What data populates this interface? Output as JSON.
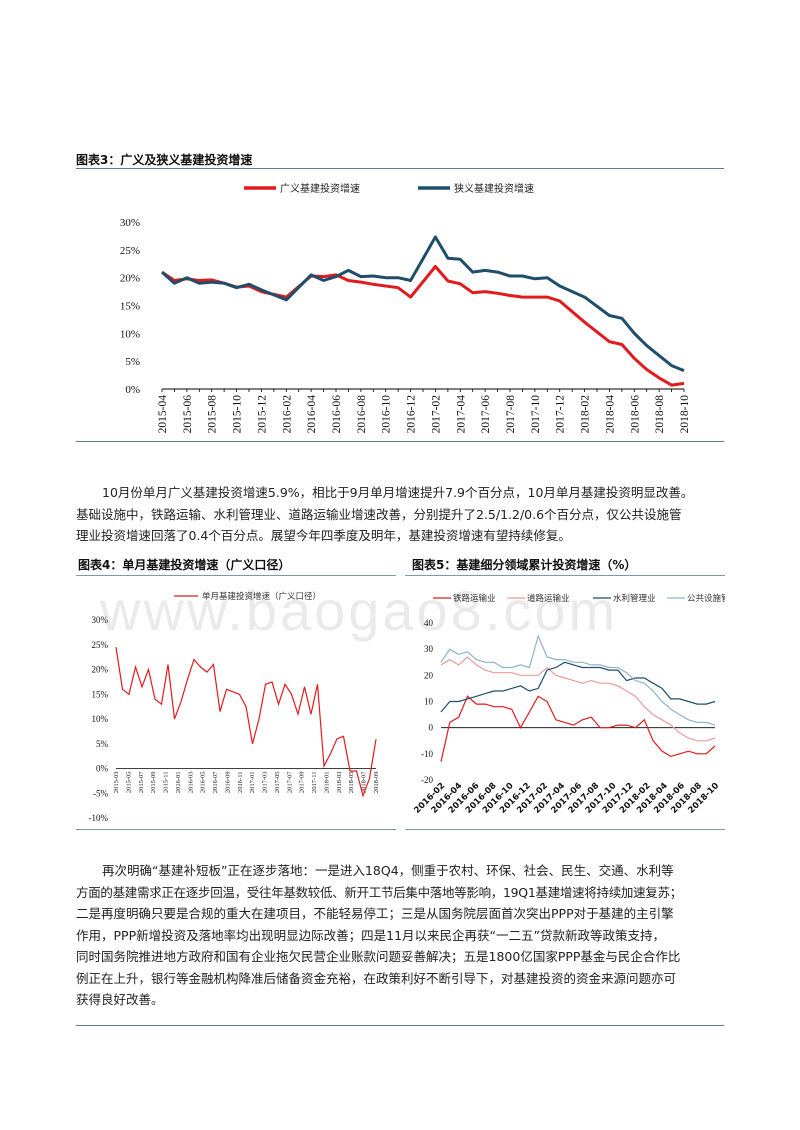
{
  "figure3": {
    "title": "图表3：广义及狭义基建投资增速",
    "chart_data": {
      "type": "line",
      "x": [
        "2015-04",
        "2015-05",
        "2015-06",
        "2015-07",
        "2015-08",
        "2015-09",
        "2015-10",
        "2015-11",
        "2015-12",
        "2016-01",
        "2016-02",
        "2016-03",
        "2016-04",
        "2016-05",
        "2016-06",
        "2016-07",
        "2016-08",
        "2016-09",
        "2016-10",
        "2016-11",
        "2016-12",
        "2017-01",
        "2017-02",
        "2017-03",
        "2017-04",
        "2017-05",
        "2017-06",
        "2017-07",
        "2017-08",
        "2017-09",
        "2017-10",
        "2017-11",
        "2017-12",
        "2018-01",
        "2018-02",
        "2018-03",
        "2018-04",
        "2018-05",
        "2018-06",
        "2018-07",
        "2018-08",
        "2018-09",
        "2018-10"
      ],
      "tick_labels": [
        "2015-04",
        "2015-06",
        "2015-08",
        "2015-10",
        "2015-12",
        "2016-02",
        "2016-04",
        "2016-06",
        "2016-08",
        "2016-10",
        "2016-12",
        "2017-02",
        "2017-04",
        "2017-06",
        "2017-08",
        "2017-10",
        "2017-12",
        "2018-02",
        "2018-04",
        "2018-06",
        "2018-08",
        "2018-10"
      ],
      "y_ticks": [
        "30%",
        "25%",
        "20%",
        "15%",
        "10%",
        "5%",
        "0%"
      ],
      "ylim": [
        0,
        30
      ],
      "series": [
        {
          "name": "广义基建投资增速",
          "color": "#e31a1c",
          "values": [
            21.0,
            19.5,
            19.8,
            19.5,
            19.6,
            19.0,
            18.3,
            18.5,
            17.5,
            null,
            16.5,
            null,
            20.3,
            20.2,
            20.5,
            19.5,
            19.2,
            18.8,
            18.5,
            18.2,
            16.5,
            null,
            22.0,
            19.4,
            18.9,
            17.3,
            17.5,
            17.2,
            16.8,
            16.5,
            16.5,
            16.5,
            15.8,
            null,
            12.0,
            null,
            8.5,
            8.0,
            5.5,
            3.5,
            2.0,
            0.7,
            1.0
          ]
        },
        {
          "name": "狭义基建投资增速",
          "color": "#1f4e6b",
          "values": [
            21.0,
            19.0,
            20.0,
            19.0,
            19.2,
            19.0,
            18.2,
            18.8,
            17.8,
            null,
            16.0,
            null,
            20.5,
            19.5,
            20.2,
            21.3,
            20.2,
            20.3,
            20.0,
            20.0,
            19.5,
            null,
            27.3,
            23.5,
            23.3,
            21.0,
            21.3,
            21.0,
            20.3,
            20.3,
            19.8,
            20.0,
            18.5,
            null,
            16.5,
            null,
            13.2,
            12.7,
            10.0,
            7.8,
            6.0,
            4.2,
            3.3
          ]
        }
      ]
    }
  },
  "paragraph1": [
    "10月份单月广义基建投资增速5.9%，相比于9月单月增速提升7.9个百分点，10月单月基建投资明显改善。",
    "基础设施中，铁路运输、水利管理业、道路运输业增速改善，分别提升了2.5/1.2/0.6个百分点，仅公共设施管",
    "理业投资增速回落了0.4个百分点。展望今年四季度及明年，基建投资增速有望持续修复。"
  ],
  "figure4": {
    "title": "图表4：单月基建投资增速（广义口径）",
    "chart_data": {
      "type": "line",
      "legend": "单月基建投资增速（广义口径）",
      "tick_labels": [
        "2015-03",
        "2015-05",
        "2015-07",
        "2015-09",
        "2015-11",
        "2016-01",
        "2016-03",
        "2016-05",
        "2016-07",
        "2016-09",
        "2016-11",
        "2017-01",
        "2017-03",
        "2017-05",
        "2017-07",
        "2017-09",
        "2017-11",
        "2018-01",
        "2018-03",
        "2018-05",
        "2018-07",
        "2018-09"
      ],
      "y_ticks": [
        "30%",
        "25%",
        "20%",
        "15%",
        "10%",
        "5%",
        "0%",
        "-5%",
        "-10%"
      ],
      "ylim": [
        -10,
        30
      ],
      "series": [
        {
          "name": "单月基建投资增速（广义口径）",
          "color": "#e31a1c",
          "values": [
            24.5,
            16.0,
            15.0,
            20.5,
            16.5,
            20.0,
            14.0,
            13.0,
            21.0,
            10.0,
            13.5,
            18.0,
            22.0,
            20.5,
            19.5,
            21.0,
            11.5,
            16.0,
            15.5,
            15.0,
            12.5,
            5.0,
            10.0,
            17.0,
            17.5,
            13.0,
            17.0,
            15.0,
            11.0,
            16.5,
            11.0,
            17.0,
            0.5,
            3.0,
            6.0,
            6.5,
            -0.5,
            -0.5,
            -5.5,
            -2.0,
            5.9
          ]
        }
      ]
    }
  },
  "figure5": {
    "title": "图表5：基建细分领域累计投资增速（%）",
    "chart_data": {
      "type": "line",
      "tick_labels": [
        "2016-02",
        "2016-04",
        "2016-06",
        "2016-08",
        "2016-10",
        "2016-12",
        "2017-02",
        "2017-04",
        "2017-06",
        "2017-08",
        "2017-10",
        "2017-12",
        "2018-02",
        "2018-04",
        "2018-06",
        "2018-08",
        "2018-10"
      ],
      "y_ticks": [
        "40",
        "30",
        "20",
        "10",
        "0",
        "-10",
        "-20"
      ],
      "ylim": [
        -20,
        40
      ],
      "series": [
        {
          "name": "铁路运输业",
          "color": "#e31a1c",
          "values": [
            -13,
            2,
            4,
            12,
            9,
            9,
            8,
            8,
            7,
            0,
            6,
            12,
            10,
            3,
            2,
            1,
            3,
            4,
            0,
            0,
            1,
            1,
            0,
            3,
            -5,
            -9,
            -11,
            -10,
            -9,
            -10,
            -10,
            -7
          ]
        },
        {
          "name": "道路运输业",
          "color": "#ec9a9a",
          "values": [
            24,
            26,
            24,
            27,
            24,
            22,
            21,
            21,
            21,
            20,
            20,
            20,
            23,
            20,
            19,
            18,
            17,
            18,
            17,
            17,
            16,
            14,
            12,
            8,
            5,
            3,
            1,
            -2,
            -4,
            -5,
            -5,
            -4
          ]
        },
        {
          "name": "水利管理业",
          "color": "#1f4e6b",
          "values": [
            6,
            10,
            10,
            11,
            12,
            13,
            14,
            14,
            15,
            16,
            14,
            15,
            22,
            23,
            25,
            24,
            23,
            23,
            23,
            22,
            22,
            18,
            19,
            19,
            17,
            15,
            11,
            11,
            10,
            9,
            9,
            10
          ]
        },
        {
          "name": "公共设施管理业",
          "color": "#8fb3c9",
          "values": [
            25,
            30,
            28,
            29,
            26,
            25,
            25,
            23,
            23,
            24,
            23,
            35,
            27,
            26,
            26,
            25,
            25,
            24,
            24,
            23,
            23,
            21,
            18,
            17,
            14,
            10,
            7,
            5,
            3,
            2,
            2,
            1
          ]
        }
      ]
    }
  },
  "paragraph2": [
    "再次明确“基建补短板”正在逐步落地：一是进入18Q4，侧重于农村、环保、社会、民生、交通、水利等",
    "方面的基建需求正在逐步回温，受往年基数较低、新开工节后集中落地等影响，19Q1基建增速将持续加速复苏；",
    "二是再度明确只要是合规的重大在建项目，不能轻易停工；三是从国务院层面首次突出PPP对于基建的主引擎",
    "作用，PPP新增投资及落地率均出现明显边际改善；四是11月以来民企再获“一二五”贷款新政等政策支持，",
    "同时国务院推进地方政府和国有企业拖欠民营企业账款问题妥善解决；五是1800亿国家PPP基金与民企合作比",
    "例正在上升，银行等金融机构降准后储备资金充裕，在政策利好不断引导下，对基建投资的资金来源问题亦可",
    "获得良好改善。"
  ],
  "watermark": "www.baogao8.com"
}
